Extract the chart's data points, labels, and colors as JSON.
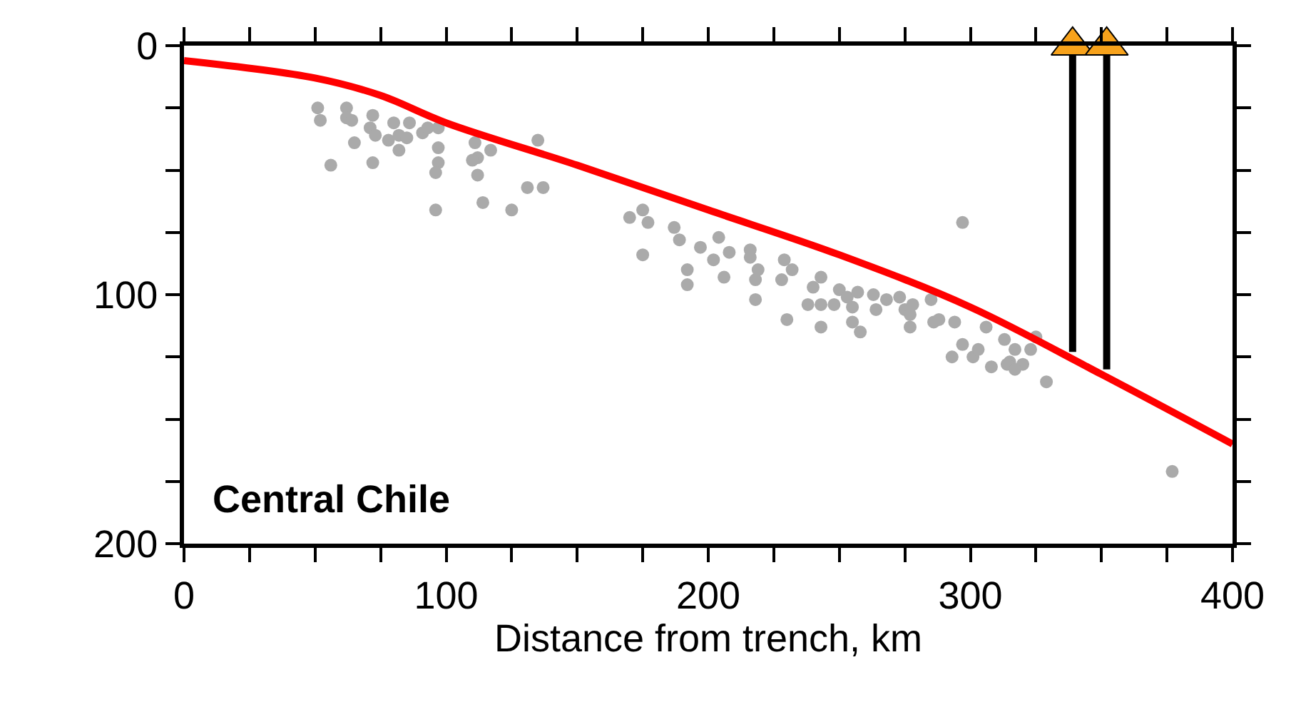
{
  "chart_data": {
    "type": "scatter",
    "xlabel": "Distance from trench, km",
    "annotations": [
      "Central Chile"
    ],
    "xlim": [
      0,
      400
    ],
    "ylim": [
      200,
      0
    ],
    "xticks": [
      0,
      {
        "value": 25,
        "label": null
      },
      {
        "value": 50,
        "label": null
      },
      {
        "value": 75,
        "label": null
      },
      100,
      {
        "value": 125,
        "label": null
      },
      {
        "value": 150,
        "label": null
      },
      {
        "value": 175,
        "label": null
      },
      200,
      {
        "value": 225,
        "label": null
      },
      {
        "value": 250,
        "label": null
      },
      {
        "value": 275,
        "label": null
      },
      300,
      {
        "value": 325,
        "label": null
      },
      {
        "value": 350,
        "label": null
      },
      {
        "value": 375,
        "label": null
      },
      400
    ],
    "yticks": [
      0,
      {
        "value": 25,
        "label": null
      },
      {
        "value": 50,
        "label": null
      },
      {
        "value": 75,
        "label": null
      },
      100,
      {
        "value": 125,
        "label": null
      },
      {
        "value": 150,
        "label": null
      },
      {
        "value": 175,
        "label": null
      },
      200
    ],
    "series": [
      {
        "marker": "circle",
        "color": "#aaaaaa",
        "x": [
          51,
          52,
          62,
          62,
          64,
          72,
          71,
          65,
          56,
          72,
          73,
          80,
          78,
          82,
          82,
          85,
          86,
          91,
          93,
          97,
          97,
          97,
          96,
          96,
          111,
          112,
          110,
          112,
          117,
          114,
          125,
          131,
          137,
          135,
          170,
          175,
          177,
          175,
          187,
          189,
          192,
          192,
          197,
          204,
          202,
          208,
          206,
          216,
          216,
          219,
          218,
          218,
          229,
          232,
          228,
          230,
          243,
          240,
          238,
          243,
          243,
          250,
          248,
          253,
          257,
          255,
          255,
          258,
          263,
          264,
          268,
          273,
          275,
          277,
          277,
          278,
          285,
          286,
          288,
          294,
          297,
          297,
          293,
          301,
          303,
          306,
          308,
          313,
          317,
          315,
          314,
          320,
          317,
          323,
          325,
          329,
          377
        ],
        "values": [
          25,
          30,
          25,
          29,
          30,
          28,
          33,
          39,
          48,
          47,
          36,
          31,
          38,
          36,
          42,
          37,
          31,
          35,
          33,
          33,
          41,
          47,
          51,
          66,
          39,
          45,
          46,
          52,
          42,
          63,
          66,
          57,
          57,
          38,
          69,
          66,
          71,
          84,
          73,
          78,
          90,
          96,
          81,
          77,
          86,
          83,
          93,
          82,
          85,
          90,
          94,
          102,
          86,
          90,
          94,
          110,
          93,
          97,
          104,
          104,
          113,
          98,
          104,
          101,
          99,
          105,
          111,
          115,
          100,
          106,
          102,
          101,
          106,
          108,
          113,
          104,
          102,
          111,
          110,
          111,
          71,
          120,
          125,
          125,
          122,
          113,
          129,
          118,
          122,
          127,
          128,
          128,
          130,
          122,
          117,
          135,
          171
        ]
      },
      {
        "type": "line",
        "color": "#ff0000",
        "x": [
          0,
          50,
          75,
          100,
          150,
          200,
          250,
          300,
          350,
          400
        ],
        "values": [
          6,
          13,
          20,
          31,
          48,
          66,
          84,
          105,
          132,
          160
        ]
      },
      {
        "type": "line",
        "color": "#000000",
        "x": [
          339,
          339
        ],
        "values": [
          0,
          123
        ]
      },
      {
        "type": "line",
        "color": "#000000",
        "x": [
          352,
          352
        ],
        "values": [
          0,
          130
        ]
      },
      {
        "type": "scatter",
        "marker": "triangle",
        "color": "#f7a21b",
        "x": [
          339,
          352
        ],
        "values": [
          0,
          0
        ]
      }
    ]
  }
}
